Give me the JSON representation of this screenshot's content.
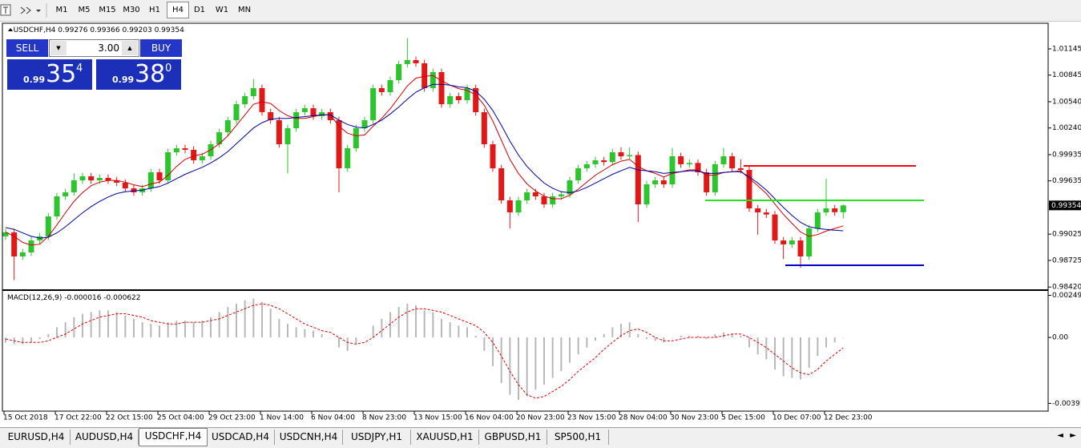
{
  "toolbar": {
    "timeframes": [
      "M1",
      "M5",
      "M15",
      "M30",
      "H1",
      "H4",
      "D1",
      "W1",
      "MN"
    ],
    "active": "H4"
  },
  "trade_panel": {
    "sell": "SELL",
    "buy": "BUY",
    "volume": "3.00",
    "bid": {
      "big": "0.99",
      "main": "35",
      "small": "4"
    },
    "ask": {
      "big": "0.99",
      "main": "38",
      "small": "0"
    }
  },
  "chart_data": [
    {
      "type": "candlestick",
      "symbol": "USDCHF,H4",
      "up_color": "#2ec42e",
      "down_color": "#e01818",
      "categories": [
        "15 Oct 2018",
        null,
        null,
        null,
        null,
        null,
        "17 Oct 22:00",
        null,
        null,
        null,
        null,
        null,
        "22 Oct 15:00",
        null,
        null,
        null,
        null,
        null,
        "25 Oct 04:00",
        null,
        null,
        null,
        null,
        null,
        "29 Oct 23:00",
        null,
        null,
        null,
        null,
        null,
        "1 Nov 14:00",
        null,
        null,
        null,
        null,
        null,
        "6 Nov 04:00",
        null,
        null,
        null,
        null,
        null,
        "8 Nov 23:00",
        null,
        null,
        null,
        null,
        null,
        "13 Nov 15:00",
        null,
        null,
        null,
        null,
        null,
        "16 Nov 04:00",
        null,
        null,
        null,
        null,
        null,
        "20 Nov 23:00",
        null,
        null,
        null,
        null,
        null,
        "23 Nov 15:00",
        null,
        null,
        null,
        null,
        null,
        "28 Nov 04:00",
        null,
        null,
        null,
        null,
        null,
        "30 Nov 23:00",
        null,
        null,
        null,
        null,
        null,
        "5 Dec 15:00",
        null,
        null,
        null,
        null,
        null,
        "10 Dec 07:00",
        null,
        null,
        null,
        null,
        null,
        "12 Dec 23:00",
        null,
        null
      ],
      "open": [
        0.99,
        0.99045,
        0.9877,
        0.98816,
        0.98953,
        0.98999,
        0.99228,
        0.99458,
        0.99504,
        0.99641,
        0.99687,
        0.99641,
        0.99669,
        0.99641,
        0.99614,
        0.99549,
        0.99504,
        0.99549,
        0.99733,
        0.99641,
        0.99962,
        1.00008,
        0.9999,
        0.9987,
        0.99916,
        1.00054,
        1.00191,
        1.00329,
        1.00512,
        1.00604,
        1.00696,
        1.00421,
        1.00329,
        1.00054,
        1.00237,
        1.00421,
        1.00466,
        1.00375,
        1.00421,
        1.00329,
        0.99779,
        1.00008,
        1.00237,
        1.00329,
        1.00696,
        1.0065,
        1.00787,
        1.00971,
        1.01017,
        1.0098,
        1.00696,
        1.00879,
        1.00512,
        1.00604,
        1.00558,
        1.00696,
        1.00421,
        1.00054,
        0.99779,
        0.99412,
        0.99274,
        0.99412,
        0.99504,
        0.99458,
        0.99366,
        0.99458,
        0.9948,
        0.99641,
        0.99779,
        0.99825,
        0.9987,
        0.9985,
        0.99962,
        0.99916,
        0.9993,
        0.99366,
        0.99595,
        0.99641,
        0.99595,
        0.99916,
        0.99825,
        0.9984,
        0.99733,
        0.99504,
        0.99825,
        0.99916,
        0.99779,
        0.9976,
        0.9932,
        0.99274,
        0.9925,
        0.98953,
        0.98908,
        0.98953,
        0.9877,
        0.99091,
        0.99274,
        0.9932,
        0.99276
      ],
      "high": [
        0.99085,
        0.99085,
        0.98856,
        0.98993,
        0.99039,
        0.99268,
        0.99498,
        0.99544,
        0.9972,
        0.99727,
        0.99727,
        0.99709,
        0.99709,
        0.99681,
        0.99654,
        0.99589,
        0.99589,
        0.99773,
        0.99773,
        1.00002,
        1.00048,
        1.00048,
        1.0003,
        0.99956,
        1.00094,
        1.00231,
        1.00369,
        1.00552,
        1.00644,
        1.008,
        1.00736,
        1.00461,
        1.00369,
        1.00277,
        1.00461,
        1.00506,
        1.00506,
        1.00461,
        1.00461,
        1.00369,
        1.00048,
        1.00277,
        1.00369,
        1.00736,
        1.00736,
        1.00827,
        1.01011,
        1.0127,
        1.01057,
        1.0102,
        1.00919,
        1.00919,
        1.00644,
        1.00644,
        1.00736,
        1.00736,
        1.00461,
        1.00094,
        0.99819,
        0.99452,
        0.99452,
        0.99544,
        0.99544,
        0.99498,
        0.99498,
        0.9952,
        0.99681,
        0.99819,
        0.99865,
        0.9991,
        0.9991,
        1.00002,
        1.0002,
        1.0002,
        0.9997,
        0.99635,
        0.99681,
        0.99681,
        1.0001,
        0.99956,
        0.9988,
        0.9988,
        0.99773,
        0.99865,
        1.0001,
        0.99956,
        0.9988,
        0.998,
        0.9936,
        0.99314,
        0.9929,
        0.98993,
        0.98993,
        0.98993,
        0.99131,
        0.99314,
        0.9966,
        0.9936,
        0.99366
      ],
      "low": [
        0.9896,
        0.985,
        0.9873,
        0.98776,
        0.98913,
        0.98959,
        0.99188,
        0.99418,
        0.99464,
        0.99601,
        0.99601,
        0.99601,
        0.99601,
        0.99574,
        0.99509,
        0.99464,
        0.99464,
        0.99509,
        0.99601,
        0.99601,
        0.99922,
        0.9995,
        0.9983,
        0.9983,
        0.99876,
        1.00014,
        1.00151,
        1.00289,
        1.00472,
        1.00564,
        1.00381,
        1.00289,
        1.00014,
        0.9972,
        1.00197,
        1.00381,
        1.00335,
        1.00335,
        1.00289,
        0.99504,
        0.99739,
        0.99968,
        1.00197,
        1.00289,
        1.0061,
        1.0061,
        1.00747,
        1.00931,
        1.0094,
        1.00656,
        1.00656,
        1.00472,
        1.00472,
        1.00518,
        1.00518,
        1.00381,
        1.00014,
        0.99739,
        0.99372,
        0.99091,
        0.99234,
        0.99372,
        0.99418,
        0.99326,
        0.99326,
        0.99418,
        0.9944,
        0.99601,
        0.99739,
        0.99785,
        0.9981,
        0.9981,
        0.99876,
        0.99876,
        0.99164,
        0.99326,
        0.99555,
        0.99555,
        0.99555,
        0.99785,
        0.99785,
        0.99693,
        0.99464,
        0.99464,
        0.99785,
        0.99739,
        0.9972,
        0.9928,
        0.9902,
        0.9921,
        0.98913,
        0.9874,
        0.98868,
        0.9864,
        0.9873,
        0.99051,
        0.99234,
        0.99236,
        0.99203
      ],
      "close": [
        0.99045,
        0.9877,
        0.98816,
        0.98953,
        0.98999,
        0.99228,
        0.99458,
        0.99504,
        0.99641,
        0.99687,
        0.99641,
        0.99669,
        0.99641,
        0.99614,
        0.99549,
        0.99504,
        0.99549,
        0.99733,
        0.99641,
        0.99962,
        1.00008,
        0.9999,
        0.9987,
        0.99916,
        1.00054,
        1.00191,
        1.00329,
        1.00512,
        1.00604,
        1.00696,
        1.00421,
        1.00329,
        1.00054,
        1.00237,
        1.00421,
        1.00466,
        1.00375,
        1.00421,
        1.00329,
        0.99779,
        1.00008,
        1.00237,
        1.00329,
        1.00696,
        1.0065,
        1.00787,
        1.00971,
        1.01017,
        1.0098,
        1.00696,
        1.00879,
        1.00512,
        1.00604,
        1.00558,
        1.00696,
        1.00421,
        1.00054,
        0.99779,
        0.99412,
        0.99274,
        0.99412,
        0.99504,
        0.99458,
        0.99366,
        0.99458,
        0.9948,
        0.99641,
        0.99779,
        0.99825,
        0.9987,
        0.9985,
        0.99962,
        0.99916,
        0.9993,
        0.99366,
        0.99595,
        0.99641,
        0.99595,
        0.99916,
        0.99825,
        0.9984,
        0.99733,
        0.99504,
        0.99825,
        0.99916,
        0.99779,
        0.9976,
        0.9932,
        0.99274,
        0.9925,
        0.98953,
        0.98908,
        0.98953,
        0.9877,
        0.99091,
        0.99274,
        0.9932,
        0.99276,
        0.99354
      ],
      "overlays": [
        {
          "color": "#d00000",
          "values": [
            0.9905,
            0.99,
            0.9893,
            0.989,
            0.9891,
            0.99,
            0.9913,
            0.9927,
            0.994,
            0.995,
            0.9958,
            0.9962,
            0.9964,
            0.9964,
            0.9962,
            0.9959,
            0.9957,
            0.996,
            0.9962,
            0.997,
            0.998,
            0.9988,
            0.9992,
            0.9994,
            0.9999,
            1.0006,
            1.0015,
            1.0027,
            1.0039,
            1.0051,
            1.0054,
            1.0052,
            1.0044,
            1.0038,
            1.0035,
            1.0035,
            1.0037,
            1.0039,
            1.0039,
            1.0026,
            1.0018,
            1.0015,
            1.0016,
            1.0026,
            1.0035,
            1.0046,
            1.0059,
            1.0072,
            1.0081,
            1.0083,
            1.0084,
            1.0078,
            1.0073,
            1.0069,
            1.0067,
            1.0062,
            1.005,
            1.0032,
            1.001,
            0.9988,
            0.9972,
            0.996,
            0.9952,
            0.9946,
            0.9943,
            0.9943,
            0.9947,
            0.9954,
            0.9962,
            0.997,
            0.9976,
            0.9982,
            0.9986,
            0.9988,
            0.998,
            0.9975,
            0.9972,
            0.9968,
            0.9972,
            0.9974,
            0.9976,
            0.9976,
            0.997,
            0.997,
            0.9973,
            0.9974,
            0.9975,
            0.9966,
            0.9958,
            0.9949,
            0.9937,
            0.9925,
            0.9915,
            0.9905,
            0.99,
            0.9902,
            0.9906,
            0.9909,
            0.9912
          ]
        },
        {
          "color": "#0000a0",
          "values": [
            0.991,
            0.9908,
            0.9904,
            0.99,
            0.9898,
            0.9899,
            0.9904,
            0.9911,
            0.9919,
            0.9927,
            0.9934,
            0.994,
            0.9945,
            0.9949,
            0.9951,
            0.9952,
            0.9953,
            0.9955,
            0.9957,
            0.9961,
            0.9966,
            0.9971,
            0.9975,
            0.9979,
            0.9984,
            0.999,
            0.9997,
            1.0006,
            1.0015,
            1.0024,
            1.003,
            1.0034,
            1.0035,
            1.0035,
            1.0036,
            1.0037,
            1.0038,
            1.0039,
            1.0039,
            1.0033,
            1.0028,
            1.0025,
            1.0024,
            1.0028,
            1.0033,
            1.004,
            1.0048,
            1.0057,
            1.0065,
            1.007,
            1.0074,
            1.0074,
            1.0073,
            1.0071,
            1.007,
            1.0066,
            1.0057,
            1.0044,
            1.0027,
            1.0009,
            0.9993,
            0.998,
            0.997,
            0.9961,
            0.9955,
            0.9951,
            0.995,
            0.9952,
            0.9956,
            0.9961,
            0.9966,
            0.9971,
            0.9975,
            0.9979,
            0.9976,
            0.9975,
            0.9974,
            0.9972,
            0.9973,
            0.9974,
            0.9975,
            0.9975,
            0.9972,
            0.9972,
            0.9973,
            0.9974,
            0.9974,
            0.9968,
            0.9961,
            0.9953,
            0.9943,
            0.9933,
            0.9924,
            0.9916,
            0.9911,
            0.9909,
            0.9908,
            0.9907,
            0.99063
          ]
        }
      ],
      "levels": [
        {
          "value": 0.99806,
          "color": "#ff0000"
        },
        {
          "value": 0.99412,
          "color": "#22e022"
        },
        {
          "value": 0.98669,
          "color": "#0000c8"
        }
      ],
      "ylim": [
        0.98394,
        1.0142
      ],
      "yticks": [
        1.01145,
        1.00845,
        {
          "value": 1.0054,
          "label": "1.00540"
        },
        {
          "value": 1.0024,
          "label": "1.00240"
        },
        0.99935,
        0.99635,
        0.99025,
        0.98725,
        {
          "value": 0.9842,
          "label": "0.98420"
        }
      ]
    },
    {
      "type": "macd",
      "title": "MACD(12,26,9)",
      "hist_color": "#b8b8b8",
      "signal_color": "#e00000",
      "histogram": [
        -0.0003,
        -0.0004,
        -0.0004,
        -0.0003,
        -0.0001,
        0.0002,
        0.0006,
        0.0009,
        0.0012,
        0.0014,
        0.0015,
        0.0016,
        0.0016,
        0.0015,
        0.0013,
        0.0011,
        0.0009,
        0.0008,
        0.0007,
        0.0009,
        0.001,
        0.001,
        0.0009,
        0.001,
        0.0012,
        0.0015,
        0.0018,
        0.002,
        0.0022,
        0.0023,
        0.0021,
        0.0017,
        0.0011,
        0.0008,
        0.0006,
        0.0005,
        0.0004,
        0.0002,
        0,
        -0.0006,
        -0.0008,
        -0.0004,
        0,
        0.0007,
        0.0011,
        0.0015,
        0.0018,
        0.002,
        0.0019,
        0.0016,
        0.0015,
        0.0011,
        0.0009,
        0.0007,
        0.0006,
        0.0001,
        -0.0008,
        -0.0017,
        -0.0027,
        -0.0034,
        -0.0037,
        -0.0035,
        -0.0031,
        -0.0028,
        -0.0024,
        -0.002,
        -0.0015,
        -0.001,
        -0.0006,
        -0.0002,
        0.0002,
        0.0006,
        0.0008,
        0.0009,
        0.0002,
        -0.0001,
        -0.0002,
        -0.0003,
        0,
        0.0001,
        0.0001,
        0.0001,
        -0.0001,
        0.0002,
        0.0003,
        0.0002,
        0.0001,
        -0.0006,
        -0.001,
        -0.0013,
        -0.0019,
        -0.0023,
        -0.0024,
        -0.0025,
        -0.0018,
        -0.0011,
        -0.0006,
        -0.0003,
        -1.6e-05
      ],
      "signal": [
        -0.0001,
        -0.0002,
        -0.0003,
        -0.0003,
        -0.0003,
        -0.0002,
        0,
        0.0002,
        0.0005,
        0.0008,
        0.001,
        0.0012,
        0.0013,
        0.0014,
        0.0014,
        0.0013,
        0.0012,
        0.001,
        0.0009,
        0.0008,
        0.0008,
        0.0009,
        0.0009,
        0.0009,
        0.001,
        0.0011,
        0.0013,
        0.0015,
        0.0017,
        0.0019,
        0.002,
        0.0019,
        0.0017,
        0.0014,
        0.0011,
        0.0008,
        0.0006,
        0.0004,
        0.0003,
        0,
        -0.0003,
        -0.0004,
        -0.0003,
        0,
        0.0004,
        0.0008,
        0.0012,
        0.0015,
        0.0017,
        0.0017,
        0.0016,
        0.0015,
        0.0013,
        0.0011,
        0.0009,
        0.0007,
        0.0003,
        -0.0003,
        -0.0011,
        -0.002,
        -0.0028,
        -0.0034,
        -0.0036,
        -0.0035,
        -0.0032,
        -0.0029,
        -0.0025,
        -0.002,
        -0.0016,
        -0.0012,
        -0.0007,
        -0.0003,
        0.0001,
        0.0004,
        0.0005,
        0.0003,
        0,
        -0.0002,
        -0.0002,
        -0.0001,
        0,
        0,
        0,
        0,
        0.0001,
        0.0002,
        0.0002,
        0,
        -0.0003,
        -0.0006,
        -0.001,
        -0.0014,
        -0.0018,
        -0.0021,
        -0.0022,
        -0.0019,
        -0.0014,
        -0.001,
        -0.000622
      ],
      "ylim": [
        -0.00432,
        0.002755
      ],
      "yticks": [
        0.002492,
        {
          "value": 0,
          "label": "0.00"
        },
        -0.00391
      ]
    }
  ],
  "tabs": [
    "EURUSD,H4",
    "AUDUSD,H4",
    "USDCHF,H4",
    "USDCAD,H4",
    "USDCNH,H4",
    "USDJPY,H1",
    "XAUUSD,H1",
    "GBPUSD,H1",
    "SP500,H1"
  ],
  "active_tab": "USDCHF,H4"
}
